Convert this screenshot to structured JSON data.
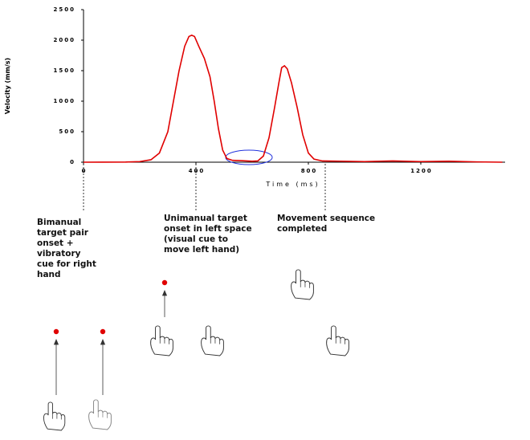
{
  "chart_data": {
    "type": "line",
    "y_label": "Velocity (mm/s)",
    "x_label": "Time (ms)",
    "color": "#e00000",
    "x": [
      0,
      150,
      200,
      240,
      270,
      300,
      320,
      340,
      360,
      375,
      385,
      395,
      410,
      430,
      450,
      465,
      480,
      495,
      510,
      530,
      560,
      600,
      620,
      640,
      660,
      680,
      695,
      705,
      715,
      725,
      740,
      760,
      780,
      800,
      820,
      850,
      1000,
      1100,
      1200,
      1300,
      1400,
      1490
    ],
    "values": [
      0,
      3,
      10,
      40,
      150,
      500,
      1000,
      1500,
      1900,
      2060,
      2080,
      2060,
      1900,
      1700,
      1400,
      1000,
      550,
      200,
      60,
      30,
      25,
      15,
      20,
      100,
      400,
      900,
      1300,
      1550,
      1580,
      1530,
      1300,
      900,
      450,
      150,
      50,
      20,
      10,
      20,
      10,
      15,
      5,
      0
    ],
    "xlim": [
      0,
      1500
    ],
    "ylim": [
      0,
      2500
    ],
    "xticks": [
      0,
      400,
      800,
      1200
    ],
    "yticks": [
      0,
      500,
      1000,
      1500,
      2000,
      2500
    ]
  },
  "annotations": [
    {
      "lines": [
        "Bimanual",
        "target pair",
        "onset +",
        "vibratory",
        "cue for right",
        "hand"
      ]
    },
    {
      "lines": [
        "Unimanual target",
        "onset in left space",
        "(visual cue to",
        "move left hand)"
      ]
    },
    {
      "lines": [
        "Movement sequence",
        "completed"
      ]
    }
  ]
}
